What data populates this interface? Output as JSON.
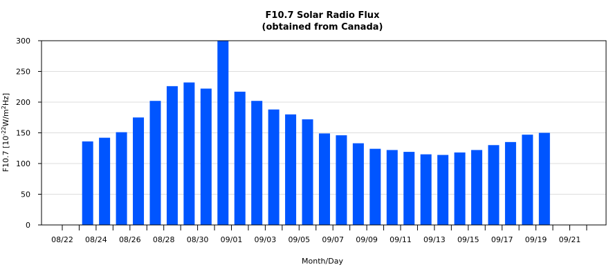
{
  "chart_data": {
    "type": "bar",
    "title": "F10.7 Solar Radio Flux",
    "subtitle": "(obtained from Canada)",
    "xlabel": "Month/Day",
    "ylabel_prefix": "F10.7 [10",
    "ylabel_exp1": "-22",
    "ylabel_mid": "W/m",
    "ylabel_exp2": "2",
    "ylabel_suffix": "Hz]",
    "ylim": [
      0,
      300
    ],
    "yticks": [
      "0",
      "50",
      "100",
      "150",
      "200",
      "250",
      "300"
    ],
    "grid": true,
    "bar_color": "#0055ff",
    "x_tick_labels": [
      "08/22",
      "08/24",
      "08/26",
      "08/28",
      "08/30",
      "09/01",
      "09/03",
      "09/05",
      "09/07",
      "09/09",
      "09/11",
      "09/13",
      "09/15",
      "09/17",
      "09/19",
      "09/21"
    ],
    "categories": [
      "08/22",
      "08/23",
      "08/24",
      "08/25",
      "08/26",
      "08/27",
      "08/28",
      "08/29",
      "08/30",
      "08/31",
      "09/01",
      "09/02",
      "09/03",
      "09/04",
      "09/05",
      "09/06",
      "09/07",
      "09/08",
      "09/09",
      "09/10",
      "09/11",
      "09/12",
      "09/13",
      "09/14",
      "09/15",
      "09/16",
      "09/17",
      "09/18",
      "09/19",
      "09/20",
      "09/21",
      "09/22"
    ],
    "values": [
      null,
      136,
      142,
      151,
      175,
      202,
      226,
      232,
      222,
      300,
      217,
      202,
      188,
      180,
      172,
      149,
      146,
      133,
      124,
      122,
      119,
      115,
      114,
      118,
      122,
      130,
      135,
      147,
      150,
      null,
      null,
      null
    ]
  }
}
